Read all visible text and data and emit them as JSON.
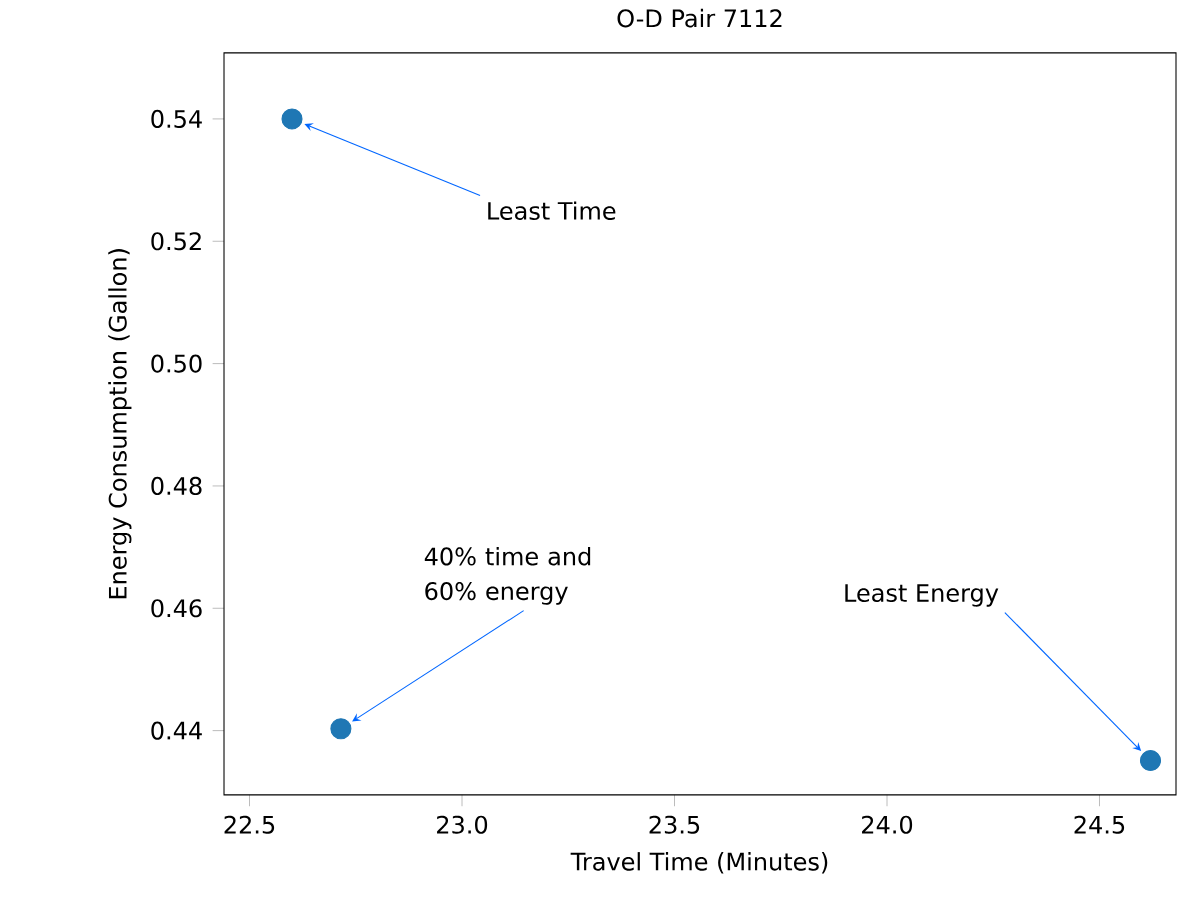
{
  "chart_data": {
    "type": "scatter",
    "title": "O-D Pair 7112",
    "xlabel": "Travel Time (Minutes)",
    "ylabel": "Energy Consumption (Gallon)",
    "x": [
      22.6,
      22.715,
      24.62
    ],
    "series": [
      {
        "color": "#1f77b4",
        "values": [
          0.54,
          0.4403,
          0.4351
        ]
      }
    ],
    "marker": "circle",
    "xlim": [
      22.44,
      24.68
    ],
    "ylim": [
      0.4295,
      0.5508
    ],
    "xticks": [
      {
        "value": 22.5,
        "label": "22.5"
      },
      {
        "value": 23.0,
        "label": "23.0"
      },
      {
        "value": 23.5,
        "label": "23.5"
      },
      {
        "value": 24.0,
        "label": "24.0"
      },
      {
        "value": 24.5,
        "label": "24.5"
      }
    ],
    "yticks": [
      {
        "value": 0.44,
        "label": "0.44"
      },
      {
        "value": 0.46,
        "label": "0.46"
      },
      {
        "value": 0.48,
        "label": "0.48"
      },
      {
        "value": 0.5,
        "label": "0.50"
      },
      {
        "value": 0.52,
        "label": "0.52"
      },
      {
        "value": 0.54,
        "label": "0.54"
      }
    ],
    "annotations": [
      "Least Time",
      "40% time and 60% energy",
      "Least Energy"
    ]
  }
}
